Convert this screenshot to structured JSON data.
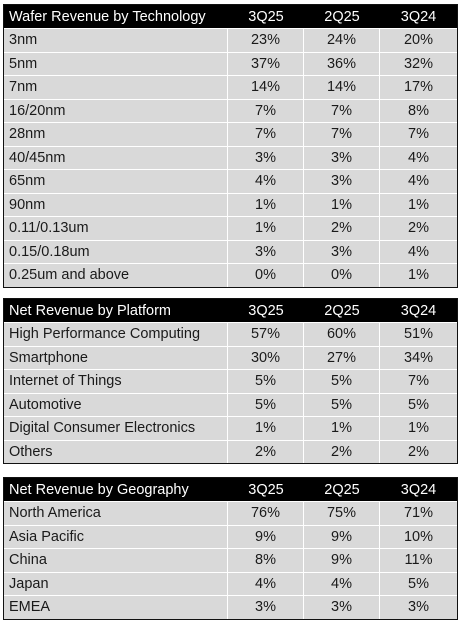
{
  "tables": [
    {
      "header": "Wafer Revenue by Technology",
      "columns": [
        "3Q25",
        "2Q25",
        "3Q24"
      ],
      "rows": [
        {
          "label": "3nm",
          "values": [
            "23%",
            "24%",
            "20%"
          ]
        },
        {
          "label": "5nm",
          "values": [
            "37%",
            "36%",
            "32%"
          ]
        },
        {
          "label": "7nm",
          "values": [
            "14%",
            "14%",
            "17%"
          ]
        },
        {
          "label": "16/20nm",
          "values": [
            "7%",
            "7%",
            "8%"
          ]
        },
        {
          "label": "28nm",
          "values": [
            "7%",
            "7%",
            "7%"
          ]
        },
        {
          "label": "40/45nm",
          "values": [
            "3%",
            "3%",
            "4%"
          ]
        },
        {
          "label": "65nm",
          "values": [
            "4%",
            "3%",
            "4%"
          ]
        },
        {
          "label": "90nm",
          "values": [
            "1%",
            "1%",
            "1%"
          ]
        },
        {
          "label": "0.11/0.13um",
          "values": [
            "1%",
            "2%",
            "2%"
          ]
        },
        {
          "label": "0.15/0.18um",
          "values": [
            "3%",
            "3%",
            "4%"
          ]
        },
        {
          "label": "0.25um and above",
          "values": [
            "0%",
            "0%",
            "1%"
          ]
        }
      ]
    },
    {
      "header": "Net Revenue by Platform",
      "columns": [
        "3Q25",
        "2Q25",
        "3Q24"
      ],
      "rows": [
        {
          "label": "High Performance Computing",
          "values": [
            "57%",
            "60%",
            "51%"
          ]
        },
        {
          "label": "Smartphone",
          "values": [
            "30%",
            "27%",
            "34%"
          ]
        },
        {
          "label": "Internet of Things",
          "values": [
            "5%",
            "5%",
            "7%"
          ]
        },
        {
          "label": "Automotive",
          "values": [
            "5%",
            "5%",
            "5%"
          ]
        },
        {
          "label": "Digital Consumer Electronics",
          "values": [
            "1%",
            "1%",
            "1%"
          ]
        },
        {
          "label": "Others",
          "values": [
            "2%",
            "2%",
            "2%"
          ]
        }
      ]
    },
    {
      "header": "Net Revenue by Geography",
      "columns": [
        "3Q25",
        "2Q25",
        "3Q24"
      ],
      "rows": [
        {
          "label": "North America",
          "values": [
            "76%",
            "75%",
            "71%"
          ]
        },
        {
          "label": "Asia Pacific",
          "values": [
            "9%",
            "9%",
            "10%"
          ]
        },
        {
          "label": "China",
          "values": [
            "8%",
            "9%",
            "11%"
          ]
        },
        {
          "label": "Japan",
          "values": [
            "4%",
            "4%",
            "5%"
          ]
        },
        {
          "label": "EMEA",
          "values": [
            "3%",
            "3%",
            "3%"
          ]
        }
      ]
    }
  ]
}
